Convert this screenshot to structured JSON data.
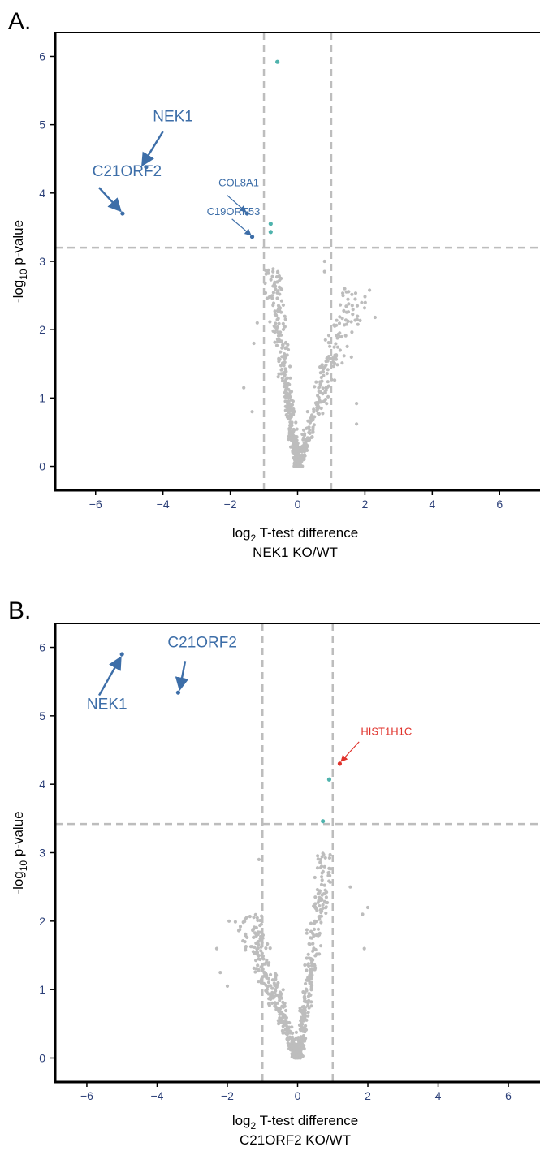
{
  "colors": {
    "background_points": "#bdbdbd",
    "significant_blue": "#3d6ea8",
    "significant_teal": "#4fb3ad",
    "highlight_red": "#e0322b",
    "threshold_lines": "#bdbdbd",
    "tick_labels": "#2b3f78"
  },
  "chart_data": [
    {
      "type": "scatter",
      "panel_label": "A.",
      "ylabel_prefix": "-log",
      "ylabel_sub": "10",
      "ylabel_suffix": " p-value",
      "xlabel_prefix": "log",
      "xlabel_sub": "2",
      "xlabel_suffix": " T-test difference",
      "xlabel_line2": "NEK1 KO/WT",
      "xlim": [
        -7.2,
        7.2
      ],
      "ylim": [
        -0.35,
        6.35
      ],
      "xticks": [
        -6,
        -4,
        -2,
        0,
        2,
        4,
        6
      ],
      "yticks": [
        0,
        1,
        2,
        3,
        4,
        5,
        6
      ],
      "thresholds": {
        "x": [
          -1,
          1
        ],
        "y": 3.2
      },
      "highlighted_points": [
        {
          "label": "NEK1",
          "x": -4.5,
          "y": 4.38,
          "color": "significant_blue",
          "size": "big",
          "label_x": -4.3,
          "label_y": 5.05,
          "arrow_from": [
            -4.0,
            4.9
          ],
          "arrow_to": [
            -4.6,
            4.42
          ]
        },
        {
          "label": "C21ORF2",
          "x": -5.2,
          "y": 3.7,
          "color": "significant_blue",
          "size": "big",
          "label_x": -6.1,
          "label_y": 4.25,
          "arrow_from": [
            -5.9,
            4.08
          ],
          "arrow_to": [
            -5.28,
            3.75
          ]
        },
        {
          "label": "COL8A1",
          "x": -1.5,
          "y": 3.7,
          "color": "significant_blue",
          "size": "small",
          "label_x": -2.35,
          "label_y": 4.1,
          "arrow_from": [
            -2.1,
            3.97
          ],
          "arrow_to": [
            -1.55,
            3.73
          ]
        },
        {
          "label": "C19ORF53",
          "x": -1.35,
          "y": 3.36,
          "color": "significant_blue",
          "size": "small",
          "label_x": -2.7,
          "label_y": 3.68,
          "arrow_from": [
            -1.95,
            3.62
          ],
          "arrow_to": [
            -1.4,
            3.39
          ]
        },
        {
          "label": "",
          "x": -0.6,
          "y": 5.92,
          "color": "significant_teal",
          "size": "small"
        },
        {
          "label": "",
          "x": -0.8,
          "y": 3.55,
          "color": "significant_teal",
          "size": "small"
        },
        {
          "label": "",
          "x": -0.8,
          "y": 3.43,
          "color": "significant_teal",
          "size": "small"
        }
      ],
      "background_spec": {
        "left_arm": {
          "x0": -0.45,
          "slope": 3.3,
          "ymax": 2.9,
          "count": 320
        },
        "right_arm": {
          "x0": 0.3,
          "slope": 1.3,
          "ymax": 2.6,
          "count": 250
        },
        "outliers": [
          [
            2.3,
            2.18
          ],
          [
            1.75,
            0.62
          ],
          [
            1.75,
            0.92
          ],
          [
            1.6,
            1.6
          ],
          [
            -1.6,
            1.15
          ],
          [
            -1.35,
            0.8
          ],
          [
            0.8,
            3.0
          ],
          [
            0.8,
            2.85
          ],
          [
            1.4,
            2.6
          ],
          [
            1.35,
            2.5
          ],
          [
            -1.2,
            2.1
          ],
          [
            -1.3,
            1.8
          ]
        ]
      }
    },
    {
      "type": "scatter",
      "panel_label": "B.",
      "ylabel_prefix": "-log",
      "ylabel_sub": "10",
      "ylabel_suffix": " p-value",
      "xlabel_prefix": "log",
      "xlabel_sub": "2",
      "xlabel_suffix": " T-test difference",
      "xlabel_line2": "C21ORF2 KO/WT",
      "xlim": [
        -6.9,
        6.9
      ],
      "ylim": [
        -0.35,
        6.35
      ],
      "xticks": [
        -6,
        -4,
        -2,
        0,
        2,
        4,
        6
      ],
      "yticks": [
        0,
        1,
        2,
        3,
        4,
        5,
        6
      ],
      "thresholds": {
        "x": [
          -1,
          1
        ],
        "y": 3.42
      },
      "highlighted_points": [
        {
          "label": "NEK1",
          "x": -5.0,
          "y": 5.9,
          "color": "significant_blue",
          "size": "big",
          "label_x": -6.0,
          "label_y": 5.1,
          "arrow_from": [
            -5.65,
            5.3
          ],
          "arrow_to": [
            -5.05,
            5.84
          ]
        },
        {
          "label": "C21ORF2",
          "x": -3.4,
          "y": 5.34,
          "color": "significant_blue",
          "size": "big",
          "label_x": -3.7,
          "label_y": 6.0,
          "arrow_from": [
            -3.2,
            5.8
          ],
          "arrow_to": [
            -3.35,
            5.4
          ]
        },
        {
          "label": "HIST1H1C",
          "x": 1.2,
          "y": 4.3,
          "color": "highlight_red",
          "size": "small",
          "label_x": 1.8,
          "label_y": 4.72,
          "arrow_from": [
            1.75,
            4.62
          ],
          "arrow_to": [
            1.25,
            4.34
          ]
        },
        {
          "label": "",
          "x": 0.9,
          "y": 4.07,
          "color": "significant_teal",
          "size": "small"
        },
        {
          "label": "",
          "x": 0.72,
          "y": 3.46,
          "color": "significant_teal",
          "size": "small"
        }
      ],
      "background_spec": {
        "left_arm": {
          "x0": -0.3,
          "slope": 1.2,
          "ymax": 2.1,
          "count": 320
        },
        "right_arm": {
          "x0": 0.15,
          "slope": 3.2,
          "ymax": 3.0,
          "count": 300
        },
        "outliers": [
          [
            -2.3,
            1.6
          ],
          [
            -2.2,
            1.25
          ],
          [
            -2.0,
            1.05
          ],
          [
            1.9,
            1.6
          ],
          [
            2.0,
            2.2
          ],
          [
            1.85,
            2.1
          ],
          [
            1.5,
            2.5
          ],
          [
            -1.95,
            2.0
          ],
          [
            -1.1,
            2.9
          ],
          [
            -1.5,
            1.7
          ]
        ]
      }
    }
  ]
}
